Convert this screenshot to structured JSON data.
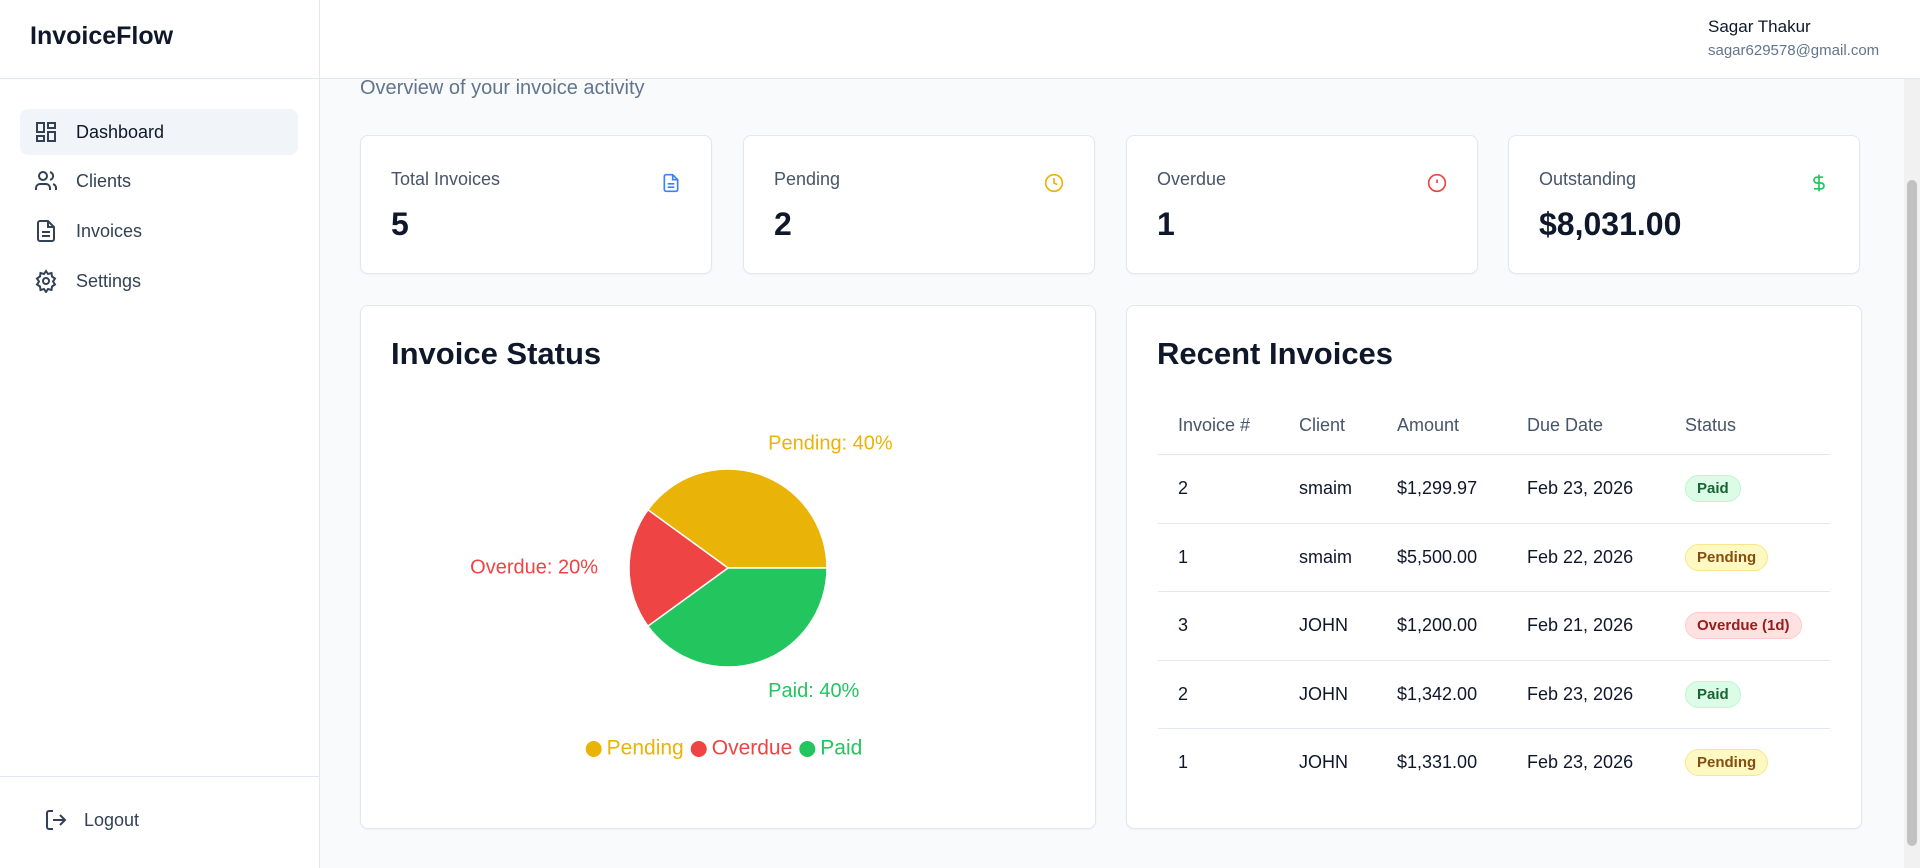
{
  "sidebar": {
    "brand": "InvoiceFlow",
    "nav": [
      "Dashboard",
      "Clients",
      "Invoices",
      "Settings"
    ],
    "logout": "Logout"
  },
  "header": {
    "user_name": "Sagar Thakur",
    "user_email": "sagar629578@gmail.com"
  },
  "subtitle": "Overview of your invoice activity",
  "stats": [
    {
      "label": "Total Invoices",
      "value": 5
    },
    {
      "label": "Pending",
      "value": 2
    },
    {
      "label": "Overdue",
      "value": 1
    },
    {
      "label": "Outstanding",
      "value": "$8,031.00"
    }
  ],
  "invoice_status": {
    "title": "Invoice Status",
    "chart_data": {
      "type": "pie",
      "categories": [
        "Pending",
        "Overdue",
        "Paid"
      ],
      "values": [
        40,
        20,
        40
      ],
      "value_labels": [
        "Pending: 40%",
        "Overdue: 20%",
        "Paid: 40%"
      ],
      "colors": [
        "#eab308",
        "#ef4444",
        "#22c55e"
      ]
    }
  },
  "recent_invoices": {
    "title": "Recent Invoices",
    "columns": [
      "Invoice #",
      "Client",
      "Amount",
      "Due Date",
      "Status"
    ],
    "rows": [
      [
        "2",
        "smaim",
        "$1,299.97",
        "Feb 23, 2026",
        "Paid"
      ],
      [
        "1",
        "smaim",
        "$5,500.00",
        "Feb 22, 2026",
        "Pending"
      ],
      [
        "3",
        "JOHN",
        "$1,200.00",
        "Feb 21, 2026",
        "Overdue (1d)"
      ],
      [
        "2",
        "JOHN",
        "$1,342.00",
        "Feb 23, 2026",
        "Paid"
      ],
      [
        "1",
        "JOHN",
        "$1,331.00",
        "Feb 23, 2026",
        "Pending"
      ]
    ]
  }
}
